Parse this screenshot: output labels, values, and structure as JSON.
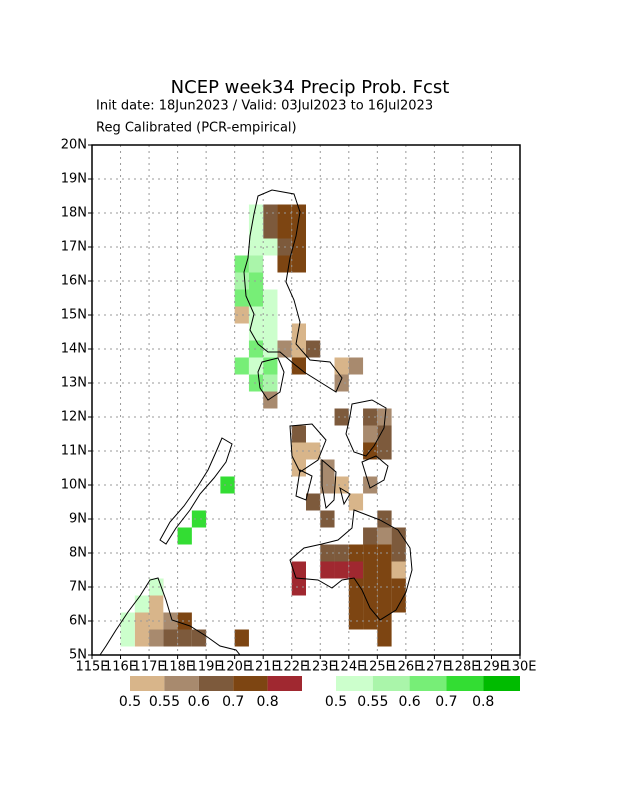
{
  "chart_data": {
    "type": "gridmap",
    "title": "NCEP week34 Precip Prob. Fcst",
    "subtitle": "Init date: 18Jun2023 / Valid: 03Jul2023 to 16Jul2023",
    "note": "Reg Calibrated (PCR-empirical)",
    "xlim": [
      115,
      130
    ],
    "ylim": [
      5,
      20
    ],
    "xticks": [
      {
        "value": 115,
        "label": "115E"
      },
      {
        "value": 116,
        "label": "116E"
      },
      {
        "value": 117,
        "label": "117E"
      },
      {
        "value": 118,
        "label": "118E"
      },
      {
        "value": 119,
        "label": "119E"
      },
      {
        "value": 120,
        "label": "120E"
      },
      {
        "value": 121,
        "label": "121E"
      },
      {
        "value": 122,
        "label": "122E"
      },
      {
        "value": 123,
        "label": "123E"
      },
      {
        "value": 124,
        "label": "124E"
      },
      {
        "value": 125,
        "label": "125E"
      },
      {
        "value": 126,
        "label": "126E"
      },
      {
        "value": 127,
        "label": "127E"
      },
      {
        "value": 128,
        "label": "128E"
      },
      {
        "value": 129,
        "label": "129E"
      },
      {
        "value": 130,
        "label": "130E"
      }
    ],
    "yticks": [
      {
        "value": 5,
        "label": "5N"
      },
      {
        "value": 6,
        "label": "6N"
      },
      {
        "value": 7,
        "label": "7N"
      },
      {
        "value": 8,
        "label": "8N"
      },
      {
        "value": 9,
        "label": "9N"
      },
      {
        "value": 10,
        "label": "10N"
      },
      {
        "value": 11,
        "label": "11N"
      },
      {
        "value": 12,
        "label": "12N"
      },
      {
        "value": 13,
        "label": "13N"
      },
      {
        "value": 14,
        "label": "14N"
      },
      {
        "value": 15,
        "label": "15N"
      },
      {
        "value": 16,
        "label": "16N"
      },
      {
        "value": 17,
        "label": "17N"
      },
      {
        "value": 18,
        "label": "18N"
      },
      {
        "value": 19,
        "label": "19N"
      },
      {
        "value": 20,
        "label": "20N"
      }
    ],
    "grid": true,
    "cell_size": 0.5,
    "dry_scale": {
      "colors": [
        "#d8b58a",
        "#a88a6e",
        "#7d5a3c",
        "#7d4512",
        "#a02830"
      ],
      "levels": [
        0.5,
        0.55,
        0.6,
        0.7,
        0.8
      ]
    },
    "wet_scale": {
      "colors": [
        "#ccffcc",
        "#aaf5aa",
        "#77ee77",
        "#33dd33",
        "#00bb00"
      ],
      "levels": [
        0.5,
        0.55,
        0.6,
        0.7,
        0.8
      ]
    },
    "dry_cells": [
      [
        121.25,
        18,
        0.6
      ],
      [
        121.75,
        18,
        0.7
      ],
      [
        122.25,
        18,
        0.7
      ],
      [
        121.25,
        17.5,
        0.6
      ],
      [
        121.75,
        17.5,
        0.7
      ],
      [
        122.25,
        17.5,
        0.7
      ],
      [
        121.75,
        17,
        0.6
      ],
      [
        122.25,
        17,
        0.7
      ],
      [
        121.75,
        16.5,
        0.7
      ],
      [
        122.25,
        16.5,
        0.7
      ],
      [
        120.25,
        15,
        0.5
      ],
      [
        122.25,
        14.5,
        0.5
      ],
      [
        121.75,
        14,
        0.55
      ],
      [
        122.25,
        14,
        0.5
      ],
      [
        122.75,
        14,
        0.6
      ],
      [
        122.25,
        13.5,
        0.7
      ],
      [
        123.75,
        13.5,
        0.5
      ],
      [
        124.25,
        13.5,
        0.55
      ],
      [
        123.75,
        13,
        0.55
      ],
      [
        121.25,
        12.5,
        0.55
      ],
      [
        123.75,
        12,
        0.6
      ],
      [
        124.75,
        12,
        0.6
      ],
      [
        125.25,
        12,
        0.55
      ],
      [
        122.25,
        11.5,
        0.6
      ],
      [
        124.75,
        11.5,
        0.55
      ],
      [
        125.25,
        11.5,
        0.6
      ],
      [
        122.25,
        11,
        0.5
      ],
      [
        122.75,
        11,
        0.5
      ],
      [
        124.75,
        11,
        0.7
      ],
      [
        125.25,
        11,
        0.6
      ],
      [
        122.25,
        10.5,
        0.5
      ],
      [
        123.25,
        10.5,
        0.55
      ],
      [
        123.25,
        10,
        0.55
      ],
      [
        123.75,
        10,
        0.5
      ],
      [
        124.75,
        10,
        0.55
      ],
      [
        122.75,
        9.5,
        0.6
      ],
      [
        124.25,
        9.5,
        0.5
      ],
      [
        123.25,
        9,
        0.6
      ],
      [
        125.25,
        9,
        0.6
      ],
      [
        124.75,
        8.5,
        0.6
      ],
      [
        125.25,
        8.5,
        0.55
      ],
      [
        125.75,
        8.5,
        0.6
      ],
      [
        123.25,
        8,
        0.6
      ],
      [
        123.75,
        8,
        0.6
      ],
      [
        124.25,
        8,
        0.7
      ],
      [
        124.75,
        8,
        0.7
      ],
      [
        125.25,
        8,
        0.7
      ],
      [
        125.75,
        8,
        0.6
      ],
      [
        122.25,
        7.5,
        0.8
      ],
      [
        123.25,
        7.5,
        0.8
      ],
      [
        123.75,
        7.5,
        0.8
      ],
      [
        124.25,
        7.5,
        0.8
      ],
      [
        124.75,
        7.5,
        0.7
      ],
      [
        125.25,
        7.5,
        0.7
      ],
      [
        125.75,
        7.5,
        0.5
      ],
      [
        122.25,
        7,
        0.8
      ],
      [
        124.25,
        7,
        0.7
      ],
      [
        124.75,
        7,
        0.7
      ],
      [
        125.25,
        7,
        0.7
      ],
      [
        125.75,
        7,
        0.7
      ],
      [
        124.25,
        6.5,
        0.7
      ],
      [
        124.75,
        6.5,
        0.7
      ],
      [
        125.25,
        6.5,
        0.7
      ],
      [
        125.75,
        6.5,
        0.7
      ],
      [
        124.25,
        6,
        0.7
      ],
      [
        124.75,
        6,
        0.7
      ],
      [
        125.25,
        6,
        0.7
      ],
      [
        125.25,
        5.5,
        0.7
      ],
      [
        117.25,
        7,
        0.5
      ],
      [
        117.25,
        6.5,
        0.5
      ],
      [
        116.75,
        6,
        0.5
      ],
      [
        117.25,
        6,
        0.5
      ],
      [
        117.75,
        6,
        0.55
      ],
      [
        118.25,
        6,
        0.7
      ],
      [
        116.75,
        5.5,
        0.5
      ],
      [
        117.25,
        5.5,
        0.55
      ],
      [
        117.75,
        5.5,
        0.6
      ],
      [
        118.25,
        5.5,
        0.6
      ],
      [
        118.75,
        5.5,
        0.6
      ],
      [
        120.25,
        5.5,
        0.7
      ]
    ],
    "wet_cells": [
      [
        120.75,
        18,
        0.5
      ],
      [
        120.75,
        17.5,
        0.5
      ],
      [
        120.75,
        17,
        0.5
      ],
      [
        121.25,
        17,
        0.5
      ],
      [
        120.25,
        16.5,
        0.6
      ],
      [
        120.75,
        16.5,
        0.55
      ],
      [
        120.25,
        16,
        0.55
      ],
      [
        120.75,
        16,
        0.6
      ],
      [
        120.25,
        15.5,
        0.6
      ],
      [
        120.75,
        15.5,
        0.6
      ],
      [
        121.25,
        15.5,
        0.5
      ],
      [
        120.75,
        15,
        0.5
      ],
      [
        121.25,
        15,
        0.5
      ],
      [
        120.75,
        14.5,
        0.5
      ],
      [
        121.25,
        14.5,
        0.5
      ],
      [
        120.75,
        14,
        0.6
      ],
      [
        121.25,
        14,
        0.5
      ],
      [
        120.25,
        13.5,
        0.6
      ],
      [
        120.75,
        13.5,
        0.5
      ],
      [
        121.25,
        13.5,
        0.6
      ],
      [
        120.75,
        13,
        0.6
      ],
      [
        121.25,
        13,
        0.55
      ],
      [
        119.75,
        10,
        0.7
      ],
      [
        118.75,
        9,
        0.7
      ],
      [
        118.25,
        8.5,
        0.7
      ],
      [
        117.25,
        7,
        0.5
      ],
      [
        116.75,
        6.5,
        0.5
      ],
      [
        116.25,
        6,
        0.5
      ],
      [
        116.25,
        5.5,
        0.5
      ]
    ]
  }
}
